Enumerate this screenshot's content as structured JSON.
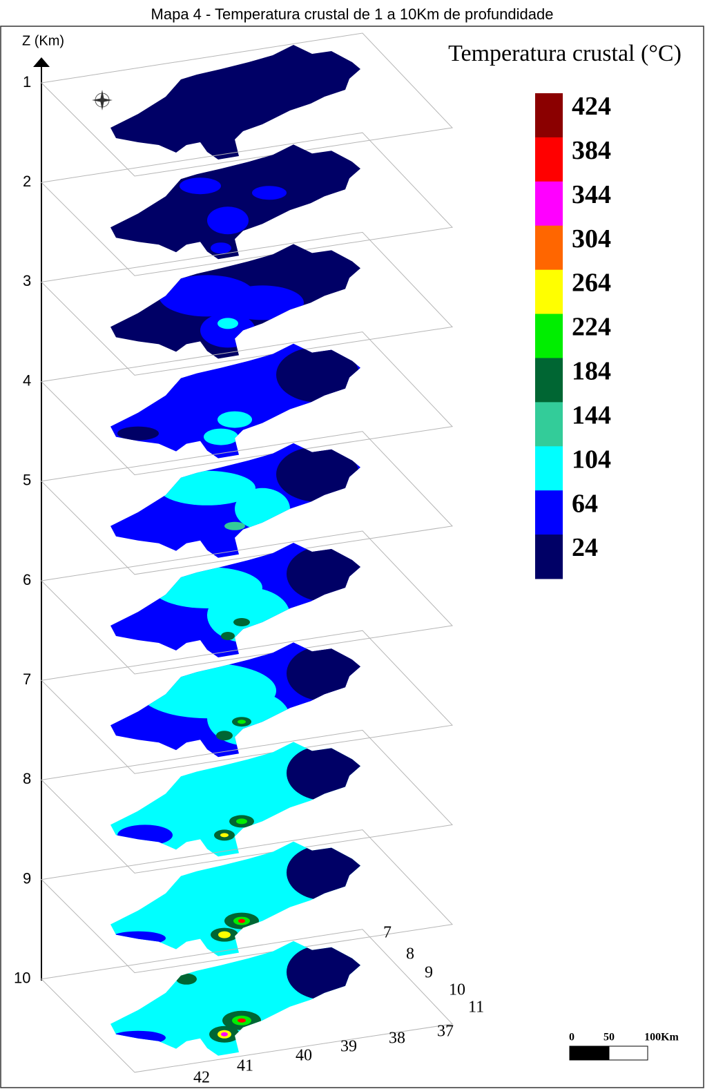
{
  "title": "Mapa 4 - Temperatura crustal de 1 a 10Km de profundidade",
  "z_axis": {
    "label": "Z (Km)",
    "ticks": [
      1,
      2,
      3,
      4,
      5,
      6,
      7,
      8,
      9,
      10
    ]
  },
  "legend": {
    "title": "Temperatura crustal (°C)",
    "levels": [
      {
        "label": "424",
        "color": "#8b0000"
      },
      {
        "label": "384",
        "color": "#ff0000"
      },
      {
        "label": "344",
        "color": "#ff00ff"
      },
      {
        "label": "304",
        "color": "#ff6600"
      },
      {
        "label": "264",
        "color": "#ffff00"
      },
      {
        "label": "224",
        "color": "#00ee00"
      },
      {
        "label": "184",
        "color": "#006633"
      },
      {
        "label": "144",
        "color": "#33cc99"
      },
      {
        "label": "104",
        "color": "#00ffff"
      },
      {
        "label": "64",
        "color": "#0000ff"
      },
      {
        "label": "24",
        "color": "#000066"
      }
    ]
  },
  "latitude_labels": [
    "7",
    "8",
    "9",
    "10",
    "11"
  ],
  "longitude_labels": [
    "42",
    "41",
    "40",
    "39",
    "38",
    "37"
  ],
  "scale_bar": {
    "labels": [
      "0",
      "50",
      "100Km"
    ]
  }
}
